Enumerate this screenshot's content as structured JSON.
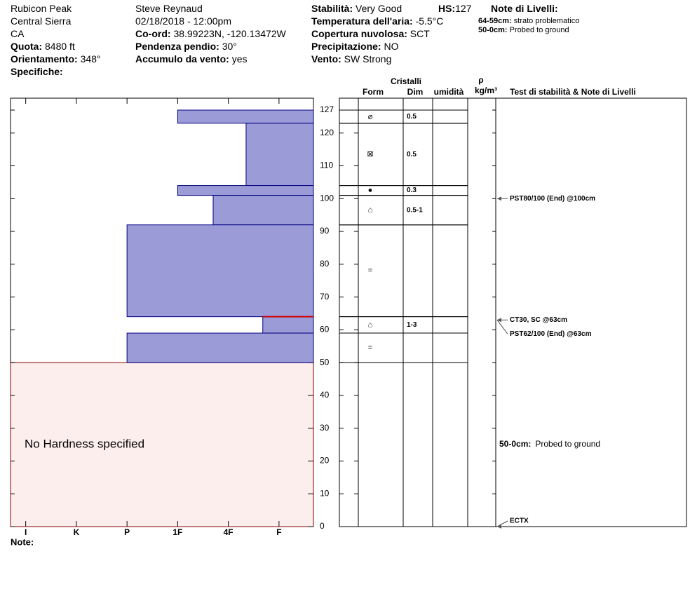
{
  "header": {
    "location": [
      "Rubicon Peak",
      "Central Sierra",
      "CA"
    ],
    "observer": "Steve Reynaud",
    "datetime": "02/18/2018 - 12:00pm",
    "left_fields": [
      {
        "label": "Quota:",
        "value": "8480 ft"
      },
      {
        "label": "Orientamento:",
        "value": "348°"
      },
      {
        "label": "Specifiche:"
      }
    ],
    "middle_fields": [
      {
        "label": "Co-ord:",
        "value": "38.99223N, -120.13472W"
      },
      {
        "label": "Pendenza pendio:",
        "value": "30°"
      },
      {
        "label": "Accumulo da vento:",
        "value": "yes"
      }
    ],
    "right_fields": [
      {
        "label": "Stabilità:",
        "value": "Very Good"
      },
      {
        "label": "Temperatura dell'aria:",
        "value": "-5.5°C"
      },
      {
        "label": "Copertura nuvolosa:",
        "value": "SCT"
      },
      {
        "label": "Precipitazione:",
        "value": "NO"
      },
      {
        "label": "Vento:",
        "value": "SW Strong"
      }
    ],
    "hs": {
      "label": "HS:",
      "value": "127"
    },
    "notes_title": "Note di Livelli:"
  },
  "chart_data": {
    "type": "snow-profile",
    "categories": [
      "I",
      "K",
      "P",
      "1F",
      "4F",
      "F"
    ],
    "xlim": [
      -0.3,
      5.68
    ],
    "ylim": [
      0,
      127
    ],
    "yticks": [
      0,
      10,
      20,
      30,
      40,
      50,
      60,
      70,
      80,
      90,
      100,
      110,
      120,
      127
    ],
    "layers": [
      {
        "top": 127,
        "bottom": 123,
        "hardness": 3,
        "form": "⌀",
        "size": "0.5"
      },
      {
        "top": 123,
        "bottom": 104,
        "hardness": 4.35,
        "form": "⊠",
        "size": "0.5"
      },
      {
        "top": 104,
        "bottom": 101,
        "hardness": 3,
        "form": "●",
        "size": "0.3"
      },
      {
        "top": 101,
        "bottom": 92,
        "hardness": 3.7,
        "form": "⌂",
        "size": "0.5-1"
      },
      {
        "top": 92,
        "bottom": 64,
        "hardness": 2,
        "form": "="
      },
      {
        "top": 64,
        "bottom": 59,
        "hardness": 4.68,
        "form": "⌂",
        "size": "1-3",
        "critical": true
      },
      {
        "top": 59,
        "bottom": 50,
        "hardness": 2,
        "form": "="
      }
    ],
    "no_hardness": {
      "top": 50,
      "bottom": 0,
      "label": "No Hardness specified"
    },
    "columns": {
      "crystals": "Cristalli",
      "form": "Form",
      "size": "Dim",
      "moisture": "umidità",
      "density_symbol": "ρ",
      "density_unit": "kg/m³",
      "tests": "Test di stabilità & Note di Livelli"
    },
    "tests": [
      {
        "depth": 100,
        "label": "PST80/100 (End) @100cm"
      },
      {
        "depth": 63,
        "label": "CT30, SC @63cm"
      },
      {
        "depth": 63,
        "label": "PST62/100 (End) @63cm"
      },
      {
        "depth": 0,
        "label": "ECTX"
      }
    ],
    "layer_notes": [
      {
        "label": "64-59cm:",
        "text": "strato problematico"
      },
      {
        "label": "50-0cm:",
        "text": "Probed to ground",
        "top": 50,
        "bottom": 0
      }
    ],
    "note_label": "Note:"
  }
}
